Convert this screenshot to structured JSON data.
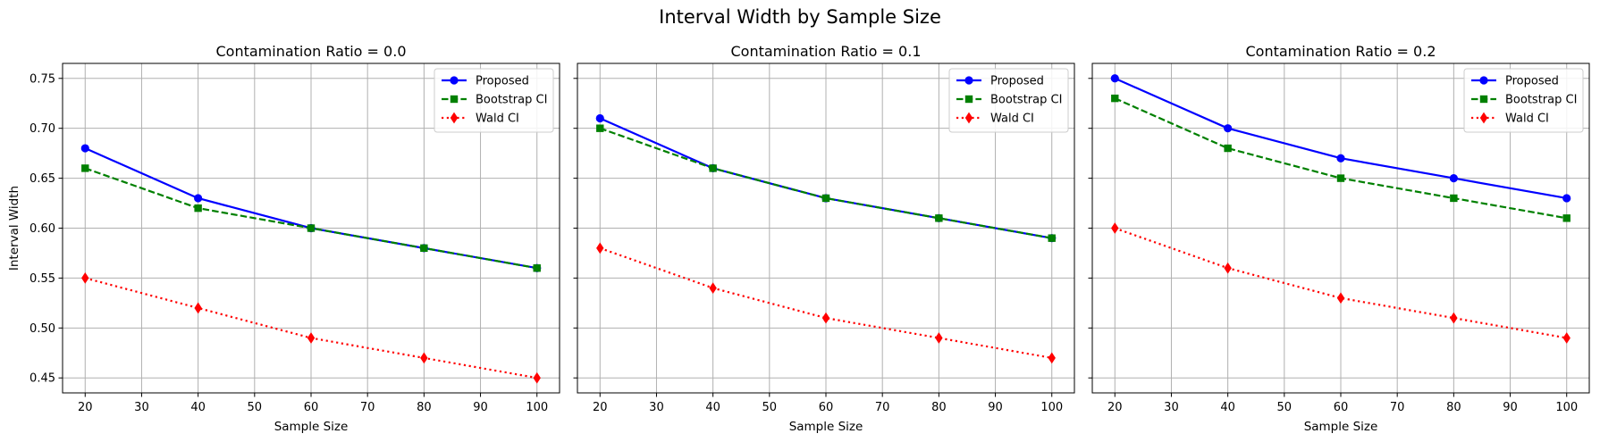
{
  "figure": {
    "suptitle": "Interval Width by Sample Size"
  },
  "colors": {
    "proposed": "#0000ff",
    "bootstrap": "#008000",
    "wald": "#ff0000",
    "grid": "#b0b0b0",
    "axis": "#000000"
  },
  "chart_data": [
    {
      "type": "line",
      "title": "Contamination Ratio = 0.0",
      "xlabel": "Sample Size",
      "ylabel": "Interval Width",
      "x": [
        20,
        40,
        60,
        80,
        100
      ],
      "xlim": [
        16,
        104
      ],
      "ylim": [
        0.435,
        0.765
      ],
      "xticks": [
        20,
        30,
        40,
        50,
        60,
        70,
        80,
        90,
        100
      ],
      "yticks": [
        0.45,
        0.5,
        0.55,
        0.6,
        0.65,
        0.7,
        0.75
      ],
      "show_ytick_labels": true,
      "grid": true,
      "legend": "top-right",
      "series": [
        {
          "name": "Proposed",
          "values": [
            0.68,
            0.63,
            0.6,
            0.58,
            0.56
          ],
          "style": "solid",
          "marker": "circle",
          "color_key": "proposed"
        },
        {
          "name": "Bootstrap CI",
          "values": [
            0.66,
            0.62,
            0.6,
            0.58,
            0.56
          ],
          "style": "dashed",
          "marker": "square",
          "color_key": "bootstrap"
        },
        {
          "name": "Wald CI",
          "values": [
            0.55,
            0.52,
            0.49,
            0.47,
            0.45
          ],
          "style": "dotted",
          "marker": "diamond",
          "color_key": "wald"
        }
      ]
    },
    {
      "type": "line",
      "title": "Contamination Ratio = 0.1",
      "xlabel": "Sample Size",
      "ylabel": "",
      "x": [
        20,
        40,
        60,
        80,
        100
      ],
      "xlim": [
        16,
        104
      ],
      "ylim": [
        0.435,
        0.765
      ],
      "xticks": [
        20,
        30,
        40,
        50,
        60,
        70,
        80,
        90,
        100
      ],
      "yticks": [
        0.45,
        0.5,
        0.55,
        0.6,
        0.65,
        0.7,
        0.75
      ],
      "show_ytick_labels": false,
      "grid": true,
      "legend": "top-right",
      "series": [
        {
          "name": "Proposed",
          "values": [
            0.71,
            0.66,
            0.63,
            0.61,
            0.59
          ],
          "style": "solid",
          "marker": "circle",
          "color_key": "proposed"
        },
        {
          "name": "Bootstrap CI",
          "values": [
            0.7,
            0.66,
            0.63,
            0.61,
            0.59
          ],
          "style": "dashed",
          "marker": "square",
          "color_key": "bootstrap"
        },
        {
          "name": "Wald CI",
          "values": [
            0.58,
            0.54,
            0.51,
            0.49,
            0.47
          ],
          "style": "dotted",
          "marker": "diamond",
          "color_key": "wald"
        }
      ]
    },
    {
      "type": "line",
      "title": "Contamination Ratio = 0.2",
      "xlabel": "Sample Size",
      "ylabel": "",
      "x": [
        20,
        40,
        60,
        80,
        100
      ],
      "xlim": [
        16,
        104
      ],
      "ylim": [
        0.435,
        0.765
      ],
      "xticks": [
        20,
        30,
        40,
        50,
        60,
        70,
        80,
        90,
        100
      ],
      "yticks": [
        0.45,
        0.5,
        0.55,
        0.6,
        0.65,
        0.7,
        0.75
      ],
      "show_ytick_labels": false,
      "grid": true,
      "legend": "top-right",
      "series": [
        {
          "name": "Proposed",
          "values": [
            0.75,
            0.7,
            0.67,
            0.65,
            0.63
          ],
          "style": "solid",
          "marker": "circle",
          "color_key": "proposed"
        },
        {
          "name": "Bootstrap CI",
          "values": [
            0.73,
            0.68,
            0.65,
            0.63,
            0.61
          ],
          "style": "dashed",
          "marker": "square",
          "color_key": "bootstrap"
        },
        {
          "name": "Wald CI",
          "values": [
            0.6,
            0.56,
            0.53,
            0.51,
            0.49
          ],
          "style": "dotted",
          "marker": "diamond",
          "color_key": "wald"
        }
      ]
    }
  ]
}
